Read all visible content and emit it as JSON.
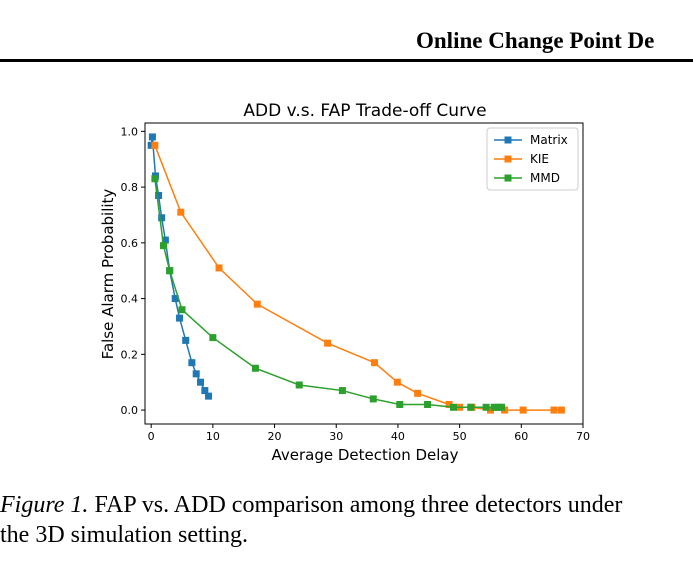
{
  "header": {
    "running_title": "Online Change Point De"
  },
  "figure": {
    "caption_label": "Figure 1.",
    "caption_line1": "FAP vs. ADD comparison among three detectors under",
    "caption_line2": "the 3D simulation setting."
  },
  "chart_data": {
    "type": "line",
    "title": "ADD v.s. FAP Trade-off Curve",
    "xlabel": "Average Detection Delay",
    "ylabel": "False Alarm Probability",
    "xlim": [
      -1,
      70
    ],
    "ylim": [
      -0.05,
      1.03
    ],
    "xticks": [
      0,
      10,
      20,
      30,
      40,
      50,
      60,
      70
    ],
    "yticks": [
      0.0,
      0.2,
      0.4,
      0.6,
      0.8,
      1.0
    ],
    "grid": false,
    "legend_position": "top-right",
    "series": [
      {
        "name": "Matrix",
        "color": "#1f77b4",
        "marker": "square",
        "points": [
          [
            0,
            0.95
          ],
          [
            0.2,
            0.98
          ],
          [
            0.7,
            0.84
          ],
          [
            1.2,
            0.77
          ],
          [
            1.7,
            0.69
          ],
          [
            2.3,
            0.61
          ],
          [
            3.0,
            0.5
          ],
          [
            3.9,
            0.4
          ],
          [
            4.6,
            0.33
          ],
          [
            5.6,
            0.25
          ],
          [
            6.6,
            0.17
          ],
          [
            7.3,
            0.13
          ],
          [
            8.0,
            0.1
          ],
          [
            8.7,
            0.07
          ],
          [
            9.3,
            0.05
          ]
        ]
      },
      {
        "name": "KIE",
        "color": "#ff7f0e",
        "marker": "square",
        "points": [
          [
            0.6,
            0.95
          ],
          [
            4.8,
            0.71
          ],
          [
            11.0,
            0.51
          ],
          [
            17.2,
            0.38
          ],
          [
            28.6,
            0.24
          ],
          [
            36.2,
            0.17
          ],
          [
            39.9,
            0.1
          ],
          [
            43.2,
            0.06
          ],
          [
            48.3,
            0.02
          ],
          [
            50.0,
            0.01
          ],
          [
            52.0,
            0.01
          ],
          [
            55.0,
            0.0
          ],
          [
            57.3,
            0.0
          ],
          [
            60.3,
            0.0
          ],
          [
            65.3,
            0.0
          ],
          [
            66.5,
            0.0
          ]
        ]
      },
      {
        "name": "MMD",
        "color": "#2ca02c",
        "marker": "square",
        "points": [
          [
            0.6,
            0.83
          ],
          [
            2.0,
            0.59
          ],
          [
            3.0,
            0.5
          ],
          [
            5.0,
            0.36
          ],
          [
            10.0,
            0.26
          ],
          [
            16.9,
            0.15
          ],
          [
            24.0,
            0.09
          ],
          [
            31.0,
            0.07
          ],
          [
            36.0,
            0.04
          ],
          [
            40.3,
            0.02
          ],
          [
            44.8,
            0.02
          ],
          [
            49.0,
            0.01
          ],
          [
            51.8,
            0.01
          ],
          [
            54.3,
            0.01
          ],
          [
            55.6,
            0.01
          ],
          [
            56.3,
            0.01
          ],
          [
            56.8,
            0.01
          ]
        ]
      }
    ]
  }
}
